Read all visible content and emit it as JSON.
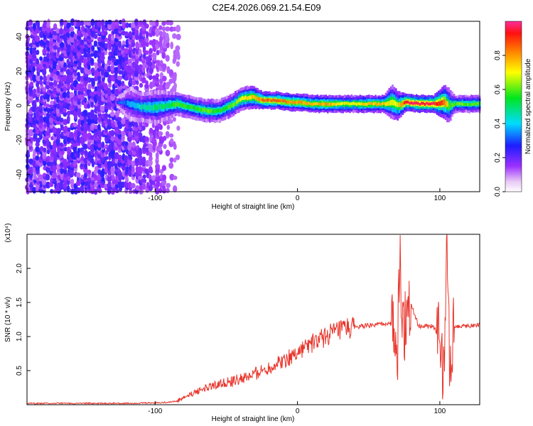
{
  "title": "C2E4.2026.069.21.54.E09",
  "chart_data": [
    {
      "type": "heatmap",
      "xlabel": "Height of straight line (km)",
      "ylabel": "Frequency (Hz)",
      "xlim": [
        -190,
        128
      ],
      "ylim": [
        -50,
        49
      ],
      "x_ticks": [
        -100,
        0,
        100
      ],
      "x_tick_labels": [
        "-100",
        "0",
        "100"
      ],
      "y_ticks": [
        -40,
        -20,
        0,
        20,
        40
      ],
      "y_tick_labels": [
        "-40",
        "-20",
        "0",
        "20",
        "40"
      ],
      "grid": false,
      "colorbar": {
        "label": "Normalized spectral amplitude",
        "range": [
          0,
          1
        ],
        "ticks": [
          0,
          0.2,
          0.4,
          0.6,
          0.8
        ],
        "tick_labels": [
          "0.0",
          "0.2",
          "0.4",
          "0.6",
          "0.8"
        ],
        "colormap": "rainbow: white-violet-blue-cyan-green-yellow-orange-red-pink"
      },
      "noise_region_x": [
        -190,
        -84
      ],
      "trace": {
        "x": [
          -127,
          -118,
          -110,
          -100,
          -92,
          -85,
          -75,
          -65,
          -55,
          -45,
          -40,
          -32,
          -25,
          -15,
          -5,
          0,
          10,
          20,
          30,
          40,
          50,
          60,
          66,
          70,
          76,
          85,
          95,
          103,
          106,
          110,
          128
        ],
        "frequency": [
          2,
          1,
          -1,
          -1,
          0,
          1,
          -1,
          -3,
          -3,
          1,
          4,
          5,
          3,
          3,
          2,
          2,
          1,
          1,
          1,
          1,
          1,
          1,
          2,
          0,
          2,
          1,
          1,
          2,
          0,
          1,
          1
        ],
        "band_width": [
          2,
          6,
          5,
          6,
          5,
          4,
          4,
          4,
          4,
          4,
          4,
          4,
          3,
          3,
          3,
          3,
          3,
          3,
          3,
          3,
          3,
          3,
          6,
          5,
          3,
          3,
          3,
          6,
          6,
          3,
          3
        ],
        "amplitude": [
          0.3,
          0.35,
          0.45,
          0.5,
          0.5,
          0.6,
          0.55,
          0.6,
          0.55,
          0.6,
          0.7,
          0.75,
          0.85,
          0.85,
          0.8,
          0.8,
          0.75,
          0.8,
          0.7,
          0.7,
          0.75,
          0.75,
          0.7,
          0.7,
          0.95,
          0.95,
          0.95,
          0.85,
          0.6,
          0.6,
          0.6
        ]
      }
    },
    {
      "type": "line",
      "xlabel": "Height of straight line (km)",
      "ylabel": "SNR (10 * v/v)",
      "y_scale_label": "(x10⁴)",
      "xlim": [
        -190,
        128
      ],
      "ylim": [
        0,
        2.5
      ],
      "x_ticks": [
        -100,
        0,
        100
      ],
      "x_tick_labels": [
        "-100",
        "0",
        "100"
      ],
      "y_ticks": [
        0.5,
        1.0,
        1.5,
        2.0
      ],
      "y_tick_labels": [
        "0.5",
        "1.0",
        "1.5",
        "2.0"
      ],
      "grid": false,
      "color": "#e8352b",
      "series": [
        {
          "x": [
            -190,
            -150,
            -120,
            -95,
            -85,
            -75,
            -65,
            -55,
            -45,
            -35,
            -25,
            -15,
            -5,
            5,
            15,
            25,
            35,
            45,
            55,
            65,
            68,
            70,
            72,
            74,
            78,
            85,
            95,
            100,
            103,
            105,
            107,
            110,
            128
          ],
          "y": [
            0.02,
            0.02,
            0.02,
            0.03,
            0.05,
            0.15,
            0.25,
            0.3,
            0.35,
            0.4,
            0.5,
            0.6,
            0.7,
            0.85,
            0.95,
            1.05,
            1.12,
            1.15,
            1.17,
            1.2,
            1.1,
            0.5,
            2.3,
            1.0,
            1.6,
            1.15,
            1.15,
            1.0,
            0.3,
            2.5,
            0.6,
            1.15,
            1.17
          ]
        }
      ]
    }
  ]
}
